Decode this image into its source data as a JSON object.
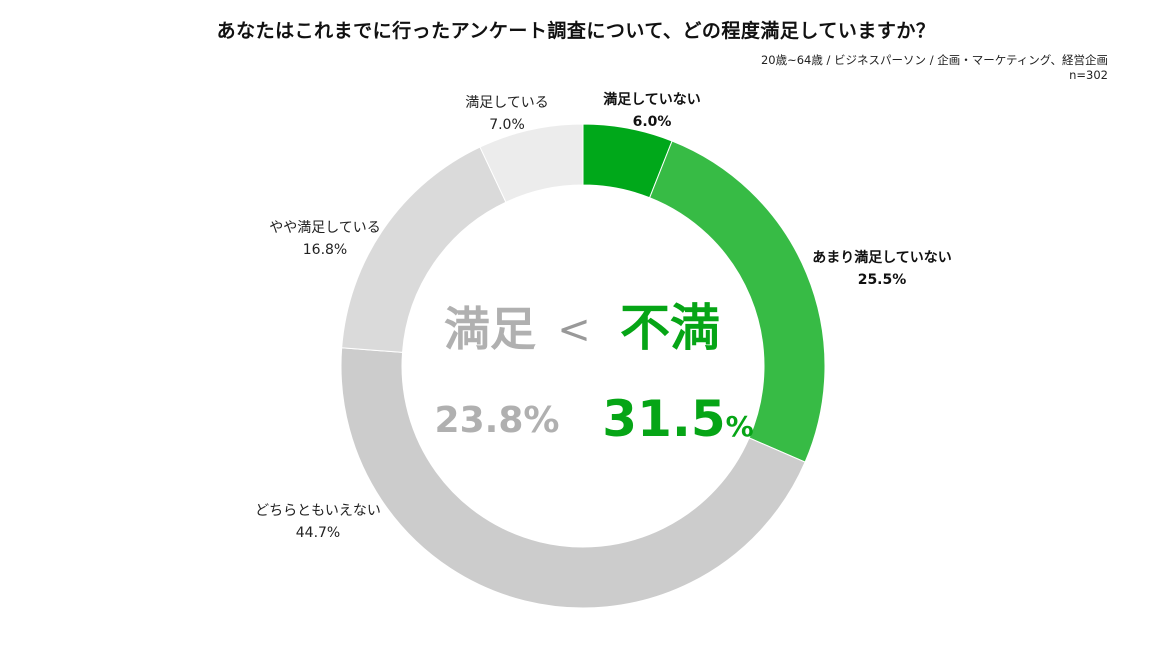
{
  "title": "あなたはこれまでに行ったアンケート調査について、どの程度満足していますか？",
  "subtitle": "20歳~64歳 / ビジネスパーソン / 企画・マーケティング、経営企画",
  "sample": "n=302",
  "center": {
    "satisfied_label": "満足",
    "comparator": "<",
    "dissatisfied_label": "不満",
    "satisfied_value": "23.8%",
    "dissatisfied_number": "31.5",
    "dissatisfied_unit": "%"
  },
  "colors": {
    "dissatisfied_text": "#06a516",
    "satisfied_text": "#b0b0b0"
  },
  "chart_data": {
    "type": "pie",
    "donut": true,
    "start": "top, clockwise",
    "slices": [
      {
        "label": "満足していない",
        "value": 6.0,
        "display": "6.0%",
        "color": "#00a81a",
        "bold": true
      },
      {
        "label": "あまり満足していない",
        "value": 25.5,
        "display": "25.5%",
        "color": "#37bb45",
        "bold": true
      },
      {
        "label": "どちらともいえない",
        "value": 44.7,
        "display": "44.7%",
        "color": "#cccccc",
        "bold": false
      },
      {
        "label": "やや満足している",
        "value": 16.8,
        "display": "16.8%",
        "color": "#dadada",
        "bold": false
      },
      {
        "label": "満足している",
        "value": 7.0,
        "display": "7.0%",
        "color": "#ececec",
        "bold": false
      }
    ]
  }
}
